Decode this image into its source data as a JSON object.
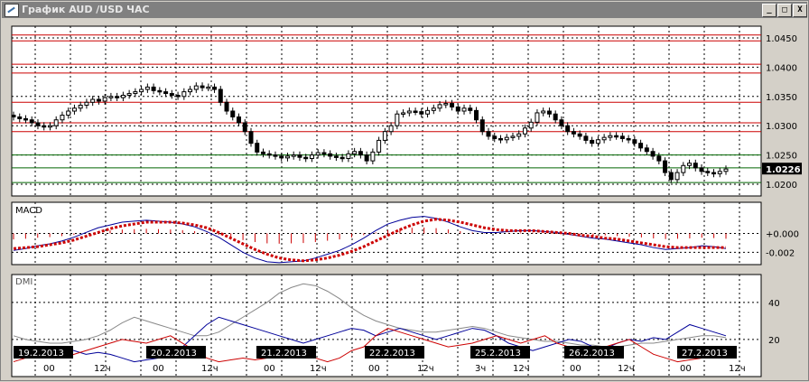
{
  "window": {
    "title": "График AUD /USD  ЧАС",
    "buttons": {
      "minimize": "_",
      "maximize": "□",
      "close": "X"
    }
  },
  "colors": {
    "bg": "#ffffff",
    "grid": "#000000",
    "hline_red": "#cc0000",
    "hline_green": "#006600",
    "macd_main": "#000099",
    "macd_signal": "#cc0000",
    "macd_hist": "#cc0000",
    "adx": "#888888",
    "plus_di": "#000099",
    "minus_di": "#cc0000",
    "date_box": "#000000",
    "date_text": "#ffffff"
  },
  "chart_data": [
    {
      "type": "candlestick",
      "title": "AUD /USD",
      "ylim": [
        1.018,
        1.047
      ],
      "y_ticks": [
        "1.0450",
        "1.0400",
        "1.0350",
        "1.0300",
        "1.0250",
        "1.0200"
      ],
      "y_tick_values": [
        1.045,
        1.04,
        1.035,
        1.03,
        1.025,
        1.02
      ],
      "current_price": "1.0226",
      "current_price_value": 1.0226,
      "horizontal_lines_red": [
        1.0455,
        1.0445,
        1.0405,
        1.039,
        1.034,
        1.0305,
        1.029
      ],
      "horizontal_lines_green": [
        1.025,
        1.0228,
        1.0203
      ],
      "closes": [
        1.0315,
        1.0312,
        1.031,
        1.0305,
        1.03,
        1.0298,
        1.03,
        1.031,
        1.0318,
        1.0325,
        1.033,
        1.0335,
        1.034,
        1.0345,
        1.0342,
        1.0348,
        1.035,
        1.0348,
        1.0352,
        1.0355,
        1.0358,
        1.0362,
        1.0366,
        1.036,
        1.0358,
        1.0355,
        1.0352,
        1.035,
        1.0358,
        1.0362,
        1.0368,
        1.0365,
        1.0366,
        1.0362,
        1.034,
        1.0325,
        1.0315,
        1.0305,
        1.029,
        1.027,
        1.0255,
        1.0252,
        1.025,
        1.0248,
        1.0245,
        1.0248,
        1.025,
        1.0246,
        1.0244,
        1.025,
        1.0254,
        1.0252,
        1.0248,
        1.0246,
        1.0244,
        1.0252,
        1.0256,
        1.025,
        1.024,
        1.0255,
        1.0275,
        1.029,
        1.03,
        1.032,
        1.0322,
        1.0325,
        1.0324,
        1.032,
        1.0326,
        1.033,
        1.0336,
        1.0338,
        1.0332,
        1.0325,
        1.033,
        1.0326,
        1.031,
        1.029,
        1.0282,
        1.0278,
        1.0276,
        1.028,
        1.0282,
        1.0286,
        1.0296,
        1.0306,
        1.0322,
        1.0325,
        1.032,
        1.031,
        1.03,
        1.029,
        1.0286,
        1.0282,
        1.0275,
        1.027,
        1.0276,
        1.028,
        1.0283,
        1.0282,
        1.0278,
        1.0276,
        1.027,
        1.0262,
        1.0256,
        1.0248,
        1.024,
        1.022,
        1.0208,
        1.022,
        1.0232,
        1.0236,
        1.0228,
        1.0222,
        1.022,
        1.0218,
        1.0222,
        1.0226
      ]
    },
    {
      "type": "line",
      "title": "MACD",
      "ylim": [
        -0.0033,
        0.0033
      ],
      "y_ticks": [
        "+0.000",
        "-0.002"
      ],
      "y_tick_values": [
        0.0,
        -0.002
      ],
      "main": [
        -0.0018,
        -0.0016,
        -0.0013,
        -0.0011,
        -0.0008,
        -0.0004,
        0.0001,
        0.0006,
        0.0009,
        0.0012,
        0.0013,
        0.0014,
        0.0013,
        0.0012,
        0.001,
        0.0007,
        0.0002,
        -0.0004,
        -0.0012,
        -0.002,
        -0.0026,
        -0.003,
        -0.0031,
        -0.003,
        -0.0029,
        -0.0026,
        -0.0022,
        -0.0018,
        -0.0012,
        -0.0005,
        0.0003,
        0.001,
        0.0014,
        0.0017,
        0.0018,
        0.0016,
        0.0012,
        0.0007,
        0.0003,
        0.0001,
        0.0001,
        0.0002,
        0.0003,
        0.0003,
        0.0002,
        0.0001,
        -0.0001,
        -0.0003,
        -0.0005,
        -0.0006,
        -0.0008,
        -0.001,
        -0.0012,
        -0.0015,
        -0.0017,
        -0.0016,
        -0.0015,
        -0.0013,
        -0.0014,
        -0.0016
      ],
      "signal": [
        -0.0016,
        -0.0015,
        -0.0014,
        -0.0012,
        -0.001,
        -0.0007,
        -0.0003,
        0.0001,
        0.0005,
        0.0008,
        0.001,
        0.0012,
        0.0012,
        0.0012,
        0.0011,
        0.0009,
        0.0006,
        0.0001,
        -0.0005,
        -0.0011,
        -0.0017,
        -0.0022,
        -0.0026,
        -0.0028,
        -0.0029,
        -0.0028,
        -0.0026,
        -0.0023,
        -0.0019,
        -0.0014,
        -0.0008,
        -0.0002,
        0.0004,
        0.0009,
        0.0013,
        0.0015,
        0.0014,
        0.0012,
        0.0009,
        0.0006,
        0.0004,
        0.0003,
        0.0003,
        0.0003,
        0.0002,
        0.0001,
        0.0,
        -0.0002,
        -0.0003,
        -0.0005,
        -0.0006,
        -0.0008,
        -0.001,
        -0.0012,
        -0.0014,
        -0.0015,
        -0.0015,
        -0.0015,
        -0.0015,
        -0.0015
      ]
    },
    {
      "type": "line",
      "title": "DMI",
      "ylim": [
        0,
        55
      ],
      "y_ticks": [
        "40",
        "20"
      ],
      "y_tick_values": [
        40,
        20
      ],
      "adx": [
        22,
        20,
        19,
        18,
        18,
        19,
        20,
        22,
        25,
        29,
        32,
        30,
        28,
        26,
        24,
        22,
        22,
        24,
        28,
        32,
        36,
        40,
        45,
        48,
        50,
        49,
        46,
        42,
        37,
        33,
        30,
        28,
        26,
        25,
        24,
        24,
        25,
        26,
        27,
        26,
        24,
        22,
        21,
        20,
        19,
        19,
        18,
        17,
        17,
        16,
        16,
        17,
        18,
        18,
        19,
        20,
        21,
        22,
        22,
        21
      ],
      "plus_di": [
        14,
        12,
        10,
        12,
        15,
        14,
        12,
        13,
        12,
        10,
        8,
        9,
        10,
        12,
        16,
        22,
        28,
        32,
        30,
        28,
        26,
        24,
        22,
        20,
        18,
        20,
        22,
        24,
        26,
        25,
        22,
        24,
        26,
        24,
        22,
        20,
        22,
        24,
        26,
        25,
        22,
        18,
        16,
        14,
        16,
        18,
        20,
        19,
        16,
        15,
        18,
        20,
        19,
        21,
        20,
        24,
        28,
        26,
        24,
        22
      ],
      "minus_di": [
        8,
        10,
        12,
        11,
        10,
        12,
        14,
        16,
        18,
        20,
        19,
        18,
        20,
        22,
        18,
        14,
        10,
        8,
        9,
        10,
        9,
        10,
        12,
        14,
        13,
        10,
        8,
        10,
        14,
        16,
        22,
        26,
        24,
        22,
        20,
        18,
        16,
        17,
        18,
        20,
        22,
        20,
        18,
        20,
        22,
        18,
        16,
        14,
        12,
        16,
        18,
        20,
        16,
        12,
        10,
        8,
        9,
        10,
        12,
        11
      ]
    }
  ],
  "time_axis": {
    "dates": [
      "19.2.2013",
      "20.2.2013",
      "21.2.2013",
      "22.2.2013",
      "25.2.2013",
      "26.2.2013",
      "27.2.2013"
    ],
    "hour_labels": [
      "00",
      "12ч",
      "00",
      "12ч",
      "00",
      "12ч",
      "00",
      "12ч",
      "3ч",
      "12ч",
      "00",
      "12ч",
      "00",
      "12ч"
    ]
  }
}
